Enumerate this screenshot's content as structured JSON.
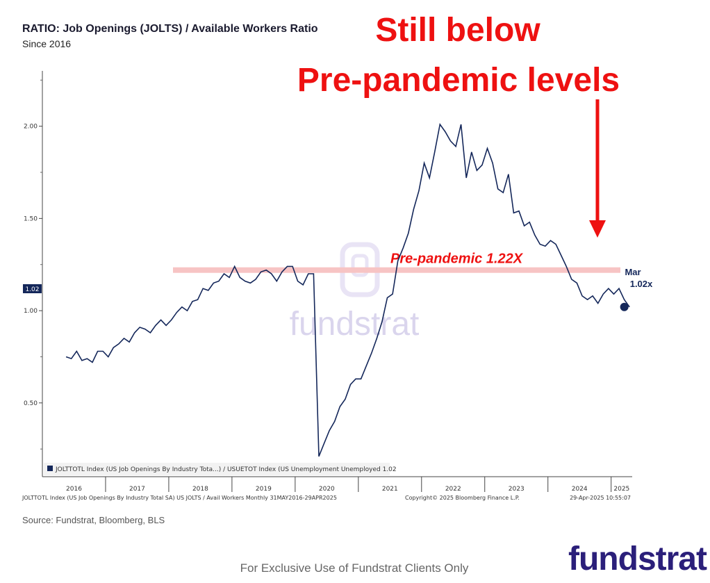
{
  "header": {
    "title": "RATIO: Job Openings (JOLTS) / Available Workers Ratio",
    "subtitle": "Since 2016"
  },
  "headline": {
    "line1": "Still below",
    "line2": "Pre-pandemic levels"
  },
  "annotations": {
    "prepandemic_label": "Pre-pandemic 1.22X",
    "last_month": "Mar",
    "last_value": "1.02x",
    "last_value_tag": "1.02"
  },
  "legend": {
    "text": "JOLTTOTL Index (US Job Openings By Industry Tota...) / USUETOT Index (US Unemployment Unemployed 1.02"
  },
  "bloomberg_footer": {
    "left": "JOLTTOTL Index (US Job Openings By Industry Total SA) US JOLTS / Avail Workers  Monthly 31MAY2016-29APR2025",
    "center": "Copyright© 2025 Bloomberg Finance L.P.",
    "right": "29-Apr-2025 10:55:07"
  },
  "watermark": "fundstrat",
  "source": "Source: Fundstrat, Bloomberg, BLS",
  "footer": {
    "note": "For Exclusive Use of Fundstrat Clients Only",
    "logo": "fundstrat"
  },
  "colors": {
    "line": "#14275a",
    "headline": "#ee1111",
    "reference_band": "#f7c4c4",
    "brand": "#2b1f7a"
  },
  "chart_data": {
    "type": "line",
    "title": "RATIO: Job Openings (JOLTS) / Available Workers Ratio",
    "subtitle": "Since 2016",
    "xlabel": "",
    "ylabel": "",
    "x_start": "2016-05",
    "x_frequency": "monthly",
    "x_range": [
      "2016-01",
      "2025-04"
    ],
    "ylim": [
      0.1,
      2.3
    ],
    "yticks": [
      0.5,
      1.0,
      1.5,
      2.0
    ],
    "ytick_labels": [
      "0.50",
      "1.00",
      "1.50",
      "2.00"
    ],
    "xtick_labels": [
      "2016",
      "2017",
      "2018",
      "2019",
      "2020",
      "2021",
      "2022",
      "2023",
      "2024",
      "2025"
    ],
    "grid": false,
    "legend_position": "bottom-left",
    "reference_line": {
      "value": 1.22,
      "label": "Pre-pandemic 1.22X"
    },
    "series": [
      {
        "name": "JOLTTOTL Index (US Job Openings By Industry Tota...) / USUETOT Index (US Unemployment Unemployed",
        "values": [
          0.75,
          0.74,
          0.78,
          0.73,
          0.74,
          0.72,
          0.78,
          0.78,
          0.75,
          0.8,
          0.82,
          0.85,
          0.83,
          0.88,
          0.91,
          0.9,
          0.88,
          0.92,
          0.95,
          0.92,
          0.95,
          0.99,
          1.02,
          1.0,
          1.05,
          1.06,
          1.12,
          1.11,
          1.15,
          1.16,
          1.2,
          1.18,
          1.24,
          1.18,
          1.16,
          1.15,
          1.17,
          1.21,
          1.22,
          1.2,
          1.16,
          1.21,
          1.24,
          1.24,
          1.16,
          1.14,
          1.2,
          1.2,
          0.21,
          0.28,
          0.35,
          0.4,
          0.48,
          0.52,
          0.6,
          0.63,
          0.63,
          0.7,
          0.77,
          0.85,
          0.94,
          1.07,
          1.09,
          1.27,
          1.34,
          1.42,
          1.55,
          1.65,
          1.8,
          1.72,
          1.86,
          2.01,
          1.97,
          1.92,
          1.89,
          2.01,
          1.72,
          1.86,
          1.76,
          1.79,
          1.88,
          1.8,
          1.66,
          1.64,
          1.74,
          1.53,
          1.54,
          1.46,
          1.48,
          1.41,
          1.36,
          1.35,
          1.38,
          1.36,
          1.3,
          1.24,
          1.17,
          1.15,
          1.08,
          1.06,
          1.08,
          1.04,
          1.09,
          1.12,
          1.09,
          1.12,
          1.06,
          1.02
        ]
      }
    ],
    "last_point": {
      "date": "2025-03",
      "value": 1.02,
      "label": "Mar 1.02x"
    }
  }
}
